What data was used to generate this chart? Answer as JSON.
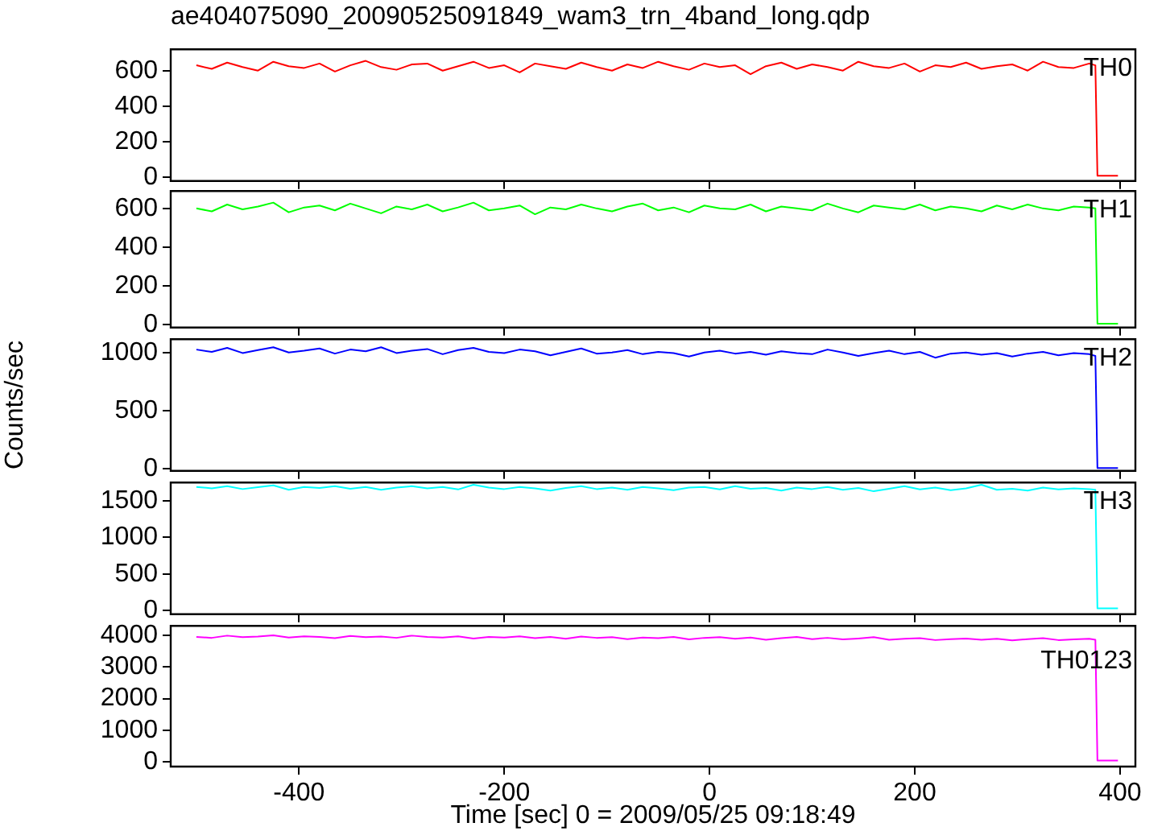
{
  "chart_data": [
    {
      "type": "line",
      "title": "ae404075090_20090525091849_wam3_trn_4band_long.qdp",
      "x": [
        -500,
        -485,
        -470,
        -455,
        -440,
        -425,
        -410,
        -395,
        -380,
        -365,
        -350,
        -335,
        -320,
        -305,
        -290,
        -275,
        -260,
        -245,
        -230,
        -215,
        -200,
        -185,
        -170,
        -155,
        -140,
        -125,
        -110,
        -95,
        -80,
        -65,
        -50,
        -35,
        -20,
        -5,
        10,
        25,
        40,
        55,
        70,
        85,
        100,
        115,
        130,
        145,
        160,
        175,
        190,
        205,
        220,
        235,
        250,
        265,
        280,
        295,
        310,
        325,
        340,
        355,
        370,
        376,
        378,
        398
      ],
      "xlim": [
        -525,
        415
      ],
      "xticks": [
        -400,
        -200,
        0,
        200,
        400
      ],
      "ylim": [
        -20,
        720
      ],
      "yticks": [
        0,
        200,
        400,
        600
      ],
      "tick_labels": "y",
      "series": [
        {
          "name": "TH0",
          "color": "#ff0000",
          "values": [
            630,
            610,
            645,
            620,
            600,
            650,
            625,
            615,
            640,
            595,
            630,
            655,
            620,
            605,
            635,
            640,
            600,
            625,
            650,
            615,
            630,
            590,
            640,
            625,
            610,
            645,
            620,
            600,
            635,
            615,
            650,
            625,
            605,
            640,
            620,
            630,
            580,
            625,
            645,
            610,
            635,
            620,
            600,
            650,
            625,
            615,
            640,
            595,
            630,
            620,
            645,
            610,
            625,
            635,
            600,
            650,
            620,
            615,
            640,
            630,
            10,
            10
          ]
        }
      ]
    },
    {
      "type": "line",
      "x": [
        -500,
        -485,
        -470,
        -455,
        -440,
        -425,
        -410,
        -395,
        -380,
        -365,
        -350,
        -335,
        -320,
        -305,
        -290,
        -275,
        -260,
        -245,
        -230,
        -215,
        -200,
        -185,
        -170,
        -155,
        -140,
        -125,
        -110,
        -95,
        -80,
        -65,
        -50,
        -35,
        -20,
        -5,
        10,
        25,
        40,
        55,
        70,
        85,
        100,
        115,
        130,
        145,
        160,
        175,
        190,
        205,
        220,
        235,
        250,
        265,
        280,
        295,
        310,
        325,
        340,
        355,
        370,
        376,
        378,
        398
      ],
      "xlim": [
        -525,
        415
      ],
      "xticks": [
        -400,
        -200,
        0,
        200,
        400
      ],
      "ylim": [
        -15,
        690
      ],
      "yticks": [
        0,
        200,
        400,
        600
      ],
      "tick_labels": "y",
      "series": [
        {
          "name": "TH1",
          "color": "#00ff00",
          "values": [
            600,
            585,
            620,
            595,
            610,
            630,
            580,
            605,
            615,
            590,
            625,
            600,
            575,
            610,
            595,
            620,
            585,
            605,
            630,
            590,
            600,
            615,
            570,
            605,
            595,
            620,
            600,
            585,
            610,
            625,
            590,
            605,
            580,
            615,
            600,
            595,
            620,
            585,
            610,
            600,
            590,
            625,
            600,
            580,
            615,
            605,
            595,
            620,
            590,
            610,
            600,
            585,
            615,
            595,
            620,
            600,
            590,
            610,
            605,
            600,
            5,
            5
          ]
        }
      ]
    },
    {
      "type": "line",
      "ylabel": "Counts/sec",
      "x": [
        -500,
        -485,
        -470,
        -455,
        -440,
        -425,
        -410,
        -395,
        -380,
        -365,
        -350,
        -335,
        -320,
        -305,
        -290,
        -275,
        -260,
        -245,
        -230,
        -215,
        -200,
        -185,
        -170,
        -155,
        -140,
        -125,
        -110,
        -95,
        -80,
        -65,
        -50,
        -35,
        -20,
        -5,
        10,
        25,
        40,
        55,
        70,
        85,
        100,
        115,
        130,
        145,
        160,
        175,
        190,
        205,
        220,
        235,
        250,
        265,
        280,
        295,
        310,
        325,
        340,
        355,
        370,
        376,
        378,
        398
      ],
      "xlim": [
        -525,
        415
      ],
      "xticks": [
        -400,
        -200,
        0,
        200,
        400
      ],
      "ylim": [
        -20,
        1120
      ],
      "yticks": [
        0,
        500,
        1000
      ],
      "tick_labels": "y",
      "series": [
        {
          "name": "TH2",
          "color": "#0000ff",
          "values": [
            1030,
            1010,
            1045,
            1000,
            1025,
            1050,
            1005,
            1020,
            1040,
            995,
            1030,
            1015,
            1050,
            1000,
            1020,
            1035,
            990,
            1025,
            1045,
            1010,
            1000,
            1030,
            1015,
            980,
            1010,
            1040,
            995,
            1005,
            1025,
            990,
            1010,
            1000,
            970,
            1005,
            1020,
            995,
            1010,
            985,
            1015,
            1000,
            990,
            1030,
            1005,
            975,
            1000,
            1020,
            990,
            1010,
            960,
            995,
            1005,
            985,
            1000,
            970,
            995,
            1010,
            980,
            1000,
            990,
            975,
            5,
            5
          ]
        }
      ]
    },
    {
      "type": "line",
      "x": [
        -500,
        -485,
        -470,
        -455,
        -440,
        -425,
        -410,
        -395,
        -380,
        -365,
        -350,
        -335,
        -320,
        -305,
        -290,
        -275,
        -260,
        -245,
        -230,
        -215,
        -200,
        -185,
        -170,
        -155,
        -140,
        -125,
        -110,
        -95,
        -80,
        -65,
        -50,
        -35,
        -20,
        -5,
        10,
        25,
        40,
        55,
        70,
        85,
        100,
        115,
        130,
        145,
        160,
        175,
        190,
        205,
        220,
        235,
        250,
        265,
        280,
        295,
        310,
        325,
        340,
        355,
        370,
        376,
        378,
        398
      ],
      "xlim": [
        -525,
        415
      ],
      "xticks": [
        -400,
        -200,
        0,
        200,
        400
      ],
      "ylim": [
        -50,
        1750
      ],
      "yticks": [
        0,
        500,
        1000,
        1500
      ],
      "tick_labels": "y",
      "series": [
        {
          "name": "TH3",
          "color": "#00ffff",
          "values": [
            1690,
            1670,
            1700,
            1660,
            1685,
            1710,
            1650,
            1690,
            1675,
            1700,
            1665,
            1690,
            1650,
            1680,
            1700,
            1670,
            1690,
            1655,
            1720,
            1680,
            1660,
            1690,
            1670,
            1640,
            1675,
            1700,
            1660,
            1680,
            1650,
            1690,
            1670,
            1645,
            1680,
            1690,
            1655,
            1700,
            1665,
            1675,
            1640,
            1680,
            1660,
            1690,
            1650,
            1675,
            1630,
            1665,
            1700,
            1655,
            1680,
            1645,
            1670,
            1720,
            1650,
            1665,
            1640,
            1680,
            1655,
            1670,
            1660,
            1650,
            30,
            30
          ]
        }
      ]
    },
    {
      "type": "line",
      "xlabel": "Time [sec] 0 = 2009/05/25 09:18:49",
      "x": [
        -500,
        -485,
        -470,
        -455,
        -440,
        -425,
        -410,
        -395,
        -380,
        -365,
        -350,
        -335,
        -320,
        -305,
        -290,
        -275,
        -260,
        -245,
        -230,
        -215,
        -200,
        -185,
        -170,
        -155,
        -140,
        -125,
        -110,
        -95,
        -80,
        -65,
        -50,
        -35,
        -20,
        -5,
        10,
        25,
        40,
        55,
        70,
        85,
        100,
        115,
        130,
        145,
        160,
        175,
        190,
        205,
        220,
        235,
        250,
        265,
        280,
        295,
        310,
        325,
        340,
        355,
        370,
        376,
        378,
        398
      ],
      "xlim": [
        -525,
        415
      ],
      "xticks": [
        -400,
        -200,
        0,
        200,
        400
      ],
      "ylim": [
        -150,
        4300
      ],
      "yticks": [
        0,
        1000,
        2000,
        3000,
        4000
      ],
      "series": [
        {
          "name": "TH0123",
          "color": "#ff00ff",
          "values": [
            3950,
            3920,
            3990,
            3940,
            3960,
            4000,
            3930,
            3970,
            3950,
            3910,
            3980,
            3940,
            3960,
            3920,
            3990,
            3950,
            3930,
            3970,
            3900,
            3950,
            3930,
            3970,
            3910,
            3950,
            3890,
            3960,
            3920,
            3940,
            3880,
            3930,
            3910,
            3950,
            3870,
            3920,
            3940,
            3890,
            3930,
            3860,
            3910,
            3950,
            3880,
            3920,
            3870,
            3900,
            3940,
            3860,
            3890,
            3910,
            3850,
            3880,
            3900,
            3860,
            3890,
            3840,
            3880,
            3910,
            3850,
            3870,
            3890,
            3860,
            40,
            40
          ]
        }
      ]
    }
  ]
}
